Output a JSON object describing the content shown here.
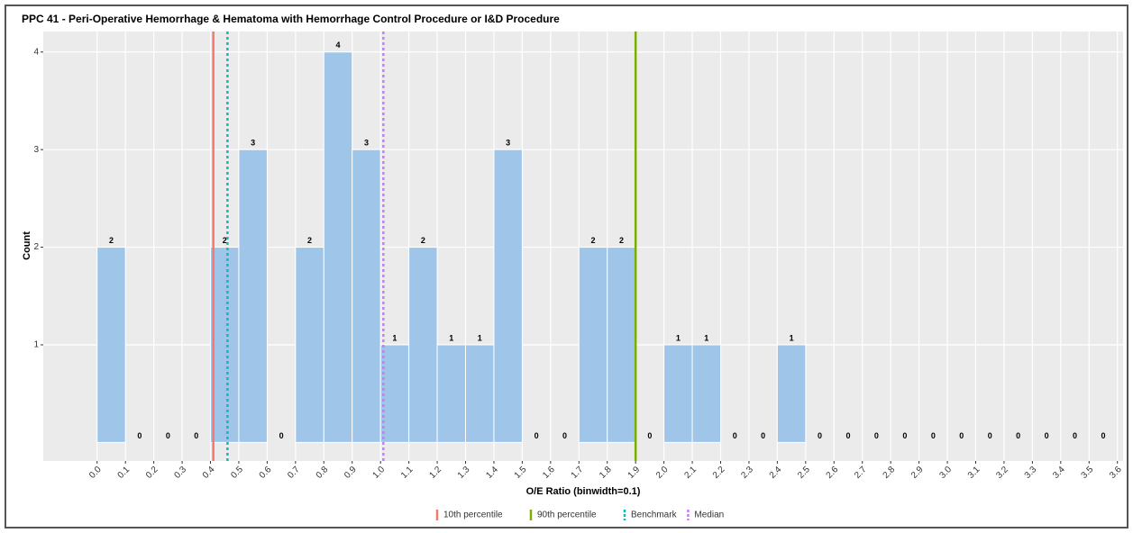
{
  "chart_data": {
    "type": "histogram",
    "title": "PPC 41 - Peri-Operative Hemorrhage & Hematoma with Hemorrhage Control Procedure or I&D Procedure",
    "x_label": "O/E Ratio (binwidth=0.1)",
    "y_label": "Count",
    "bins": [
      0,
      0.1,
      0.2,
      0.3,
      0.4,
      0.5,
      0.6,
      0.7,
      0.8,
      0.9,
      1,
      1.1,
      1.2,
      1.3,
      1.4,
      1.5,
      1.6,
      1.7,
      1.8,
      1.9,
      2,
      2.1,
      2.2,
      2.3,
      2.4,
      2.5,
      2.6,
      2.7,
      2.8,
      2.9,
      3,
      3.1,
      3.2,
      3.3,
      3.4,
      3.5,
      3.6
    ],
    "counts": [
      2,
      0,
      0,
      0,
      2,
      3,
      0,
      2,
      4,
      3,
      1,
      2,
      1,
      1,
      3,
      0,
      0,
      2,
      2,
      0,
      1,
      1,
      0,
      0,
      1,
      0,
      0,
      0,
      0,
      0,
      0,
      0,
      0,
      0,
      0,
      0
    ],
    "color": "#9fc5e8",
    "xlim": [
      -0.19,
      3.62
    ],
    "ylim": [
      -0.19,
      4.21
    ],
    "xticks": [
      {
        "value": 0,
        "label": "0.0"
      },
      0.1,
      0.2,
      0.3,
      0.4,
      0.5,
      0.6,
      0.7,
      0.8,
      0.9,
      {
        "value": 1,
        "label": "1.0"
      },
      1.1,
      1.2,
      1.3,
      1.4,
      1.5,
      1.6,
      1.7,
      1.8,
      1.9,
      {
        "value": 2,
        "label": "2.0"
      },
      2.1,
      2.2,
      2.3,
      2.4,
      2.5,
      2.6,
      2.7,
      2.8,
      2.9,
      {
        "value": 3,
        "label": "3.0"
      },
      3.1,
      3.2,
      3.3,
      3.4,
      3.5,
      3.6
    ],
    "yticks": [
      1,
      2,
      3,
      4
    ],
    "grid": true,
    "vlines": [
      {
        "name": "10th percentile",
        "color": "#f8766d",
        "value": 0.41,
        "dashed": false
      },
      {
        "name": "90th percentile",
        "color": "#7cae00",
        "value": 1.9,
        "dashed": false
      },
      {
        "name": "Benchmark",
        "color": "#00bfc4",
        "value": 0.46,
        "dashed": true
      },
      {
        "name": "Median",
        "color": "#c77cff",
        "value": 1.01,
        "dashed": true
      }
    ],
    "legend_position": "bottom"
  }
}
